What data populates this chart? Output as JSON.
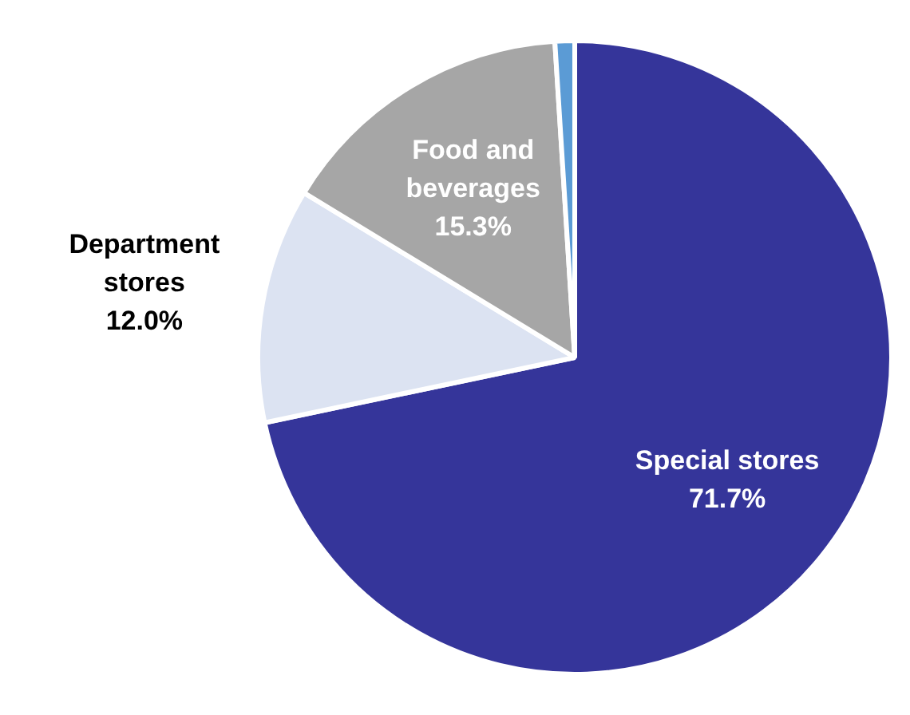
{
  "chart_data": {
    "type": "pie",
    "categories": [
      "Special stores",
      "Department stores",
      "Food and beverages",
      null
    ],
    "values": [
      71.7,
      12.0,
      15.3,
      1.0
    ],
    "colors": [
      "#35359a",
      "#dce3f2",
      "#a6a6a6",
      "#5b9bd5"
    ],
    "value_labels": [
      "71.7%",
      "12.0%",
      "15.3%",
      null
    ]
  }
}
